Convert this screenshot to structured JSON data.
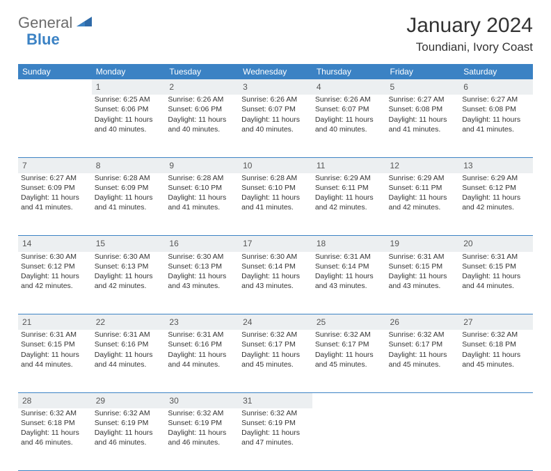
{
  "logo": {
    "text1": "General",
    "text2": "Blue"
  },
  "title": "January 2024",
  "location": "Toundiani, Ivory Coast",
  "colors": {
    "header_bg": "#3b82c4",
    "header_text": "#ffffff",
    "daynum_bg": "#eceff1",
    "page_bg": "#ffffff",
    "text": "#333333",
    "rule": "#3b82c4"
  },
  "fonts": {
    "title_size": 30,
    "location_size": 17,
    "cell_size": 10.5,
    "header_size": 12
  },
  "day_headers": [
    "Sunday",
    "Monday",
    "Tuesday",
    "Wednesday",
    "Thursday",
    "Friday",
    "Saturday"
  ],
  "weeks": [
    {
      "nums": [
        "",
        "1",
        "2",
        "3",
        "4",
        "5",
        "6"
      ],
      "cells": [
        null,
        {
          "sunrise": "Sunrise: 6:25 AM",
          "sunset": "Sunset: 6:06 PM",
          "day1": "Daylight: 11 hours",
          "day2": "and 40 minutes."
        },
        {
          "sunrise": "Sunrise: 6:26 AM",
          "sunset": "Sunset: 6:06 PM",
          "day1": "Daylight: 11 hours",
          "day2": "and 40 minutes."
        },
        {
          "sunrise": "Sunrise: 6:26 AM",
          "sunset": "Sunset: 6:07 PM",
          "day1": "Daylight: 11 hours",
          "day2": "and 40 minutes."
        },
        {
          "sunrise": "Sunrise: 6:26 AM",
          "sunset": "Sunset: 6:07 PM",
          "day1": "Daylight: 11 hours",
          "day2": "and 40 minutes."
        },
        {
          "sunrise": "Sunrise: 6:27 AM",
          "sunset": "Sunset: 6:08 PM",
          "day1": "Daylight: 11 hours",
          "day2": "and 41 minutes."
        },
        {
          "sunrise": "Sunrise: 6:27 AM",
          "sunset": "Sunset: 6:08 PM",
          "day1": "Daylight: 11 hours",
          "day2": "and 41 minutes."
        }
      ]
    },
    {
      "nums": [
        "7",
        "8",
        "9",
        "10",
        "11",
        "12",
        "13"
      ],
      "cells": [
        {
          "sunrise": "Sunrise: 6:27 AM",
          "sunset": "Sunset: 6:09 PM",
          "day1": "Daylight: 11 hours",
          "day2": "and 41 minutes."
        },
        {
          "sunrise": "Sunrise: 6:28 AM",
          "sunset": "Sunset: 6:09 PM",
          "day1": "Daylight: 11 hours",
          "day2": "and 41 minutes."
        },
        {
          "sunrise": "Sunrise: 6:28 AM",
          "sunset": "Sunset: 6:10 PM",
          "day1": "Daylight: 11 hours",
          "day2": "and 41 minutes."
        },
        {
          "sunrise": "Sunrise: 6:28 AM",
          "sunset": "Sunset: 6:10 PM",
          "day1": "Daylight: 11 hours",
          "day2": "and 41 minutes."
        },
        {
          "sunrise": "Sunrise: 6:29 AM",
          "sunset": "Sunset: 6:11 PM",
          "day1": "Daylight: 11 hours",
          "day2": "and 42 minutes."
        },
        {
          "sunrise": "Sunrise: 6:29 AM",
          "sunset": "Sunset: 6:11 PM",
          "day1": "Daylight: 11 hours",
          "day2": "and 42 minutes."
        },
        {
          "sunrise": "Sunrise: 6:29 AM",
          "sunset": "Sunset: 6:12 PM",
          "day1": "Daylight: 11 hours",
          "day2": "and 42 minutes."
        }
      ]
    },
    {
      "nums": [
        "14",
        "15",
        "16",
        "17",
        "18",
        "19",
        "20"
      ],
      "cells": [
        {
          "sunrise": "Sunrise: 6:30 AM",
          "sunset": "Sunset: 6:12 PM",
          "day1": "Daylight: 11 hours",
          "day2": "and 42 minutes."
        },
        {
          "sunrise": "Sunrise: 6:30 AM",
          "sunset": "Sunset: 6:13 PM",
          "day1": "Daylight: 11 hours",
          "day2": "and 42 minutes."
        },
        {
          "sunrise": "Sunrise: 6:30 AM",
          "sunset": "Sunset: 6:13 PM",
          "day1": "Daylight: 11 hours",
          "day2": "and 43 minutes."
        },
        {
          "sunrise": "Sunrise: 6:30 AM",
          "sunset": "Sunset: 6:14 PM",
          "day1": "Daylight: 11 hours",
          "day2": "and 43 minutes."
        },
        {
          "sunrise": "Sunrise: 6:31 AM",
          "sunset": "Sunset: 6:14 PM",
          "day1": "Daylight: 11 hours",
          "day2": "and 43 minutes."
        },
        {
          "sunrise": "Sunrise: 6:31 AM",
          "sunset": "Sunset: 6:15 PM",
          "day1": "Daylight: 11 hours",
          "day2": "and 43 minutes."
        },
        {
          "sunrise": "Sunrise: 6:31 AM",
          "sunset": "Sunset: 6:15 PM",
          "day1": "Daylight: 11 hours",
          "day2": "and 44 minutes."
        }
      ]
    },
    {
      "nums": [
        "21",
        "22",
        "23",
        "24",
        "25",
        "26",
        "27"
      ],
      "cells": [
        {
          "sunrise": "Sunrise: 6:31 AM",
          "sunset": "Sunset: 6:15 PM",
          "day1": "Daylight: 11 hours",
          "day2": "and 44 minutes."
        },
        {
          "sunrise": "Sunrise: 6:31 AM",
          "sunset": "Sunset: 6:16 PM",
          "day1": "Daylight: 11 hours",
          "day2": "and 44 minutes."
        },
        {
          "sunrise": "Sunrise: 6:31 AM",
          "sunset": "Sunset: 6:16 PM",
          "day1": "Daylight: 11 hours",
          "day2": "and 44 minutes."
        },
        {
          "sunrise": "Sunrise: 6:32 AM",
          "sunset": "Sunset: 6:17 PM",
          "day1": "Daylight: 11 hours",
          "day2": "and 45 minutes."
        },
        {
          "sunrise": "Sunrise: 6:32 AM",
          "sunset": "Sunset: 6:17 PM",
          "day1": "Daylight: 11 hours",
          "day2": "and 45 minutes."
        },
        {
          "sunrise": "Sunrise: 6:32 AM",
          "sunset": "Sunset: 6:17 PM",
          "day1": "Daylight: 11 hours",
          "day2": "and 45 minutes."
        },
        {
          "sunrise": "Sunrise: 6:32 AM",
          "sunset": "Sunset: 6:18 PM",
          "day1": "Daylight: 11 hours",
          "day2": "and 45 minutes."
        }
      ]
    },
    {
      "nums": [
        "28",
        "29",
        "30",
        "31",
        "",
        "",
        ""
      ],
      "cells": [
        {
          "sunrise": "Sunrise: 6:32 AM",
          "sunset": "Sunset: 6:18 PM",
          "day1": "Daylight: 11 hours",
          "day2": "and 46 minutes."
        },
        {
          "sunrise": "Sunrise: 6:32 AM",
          "sunset": "Sunset: 6:19 PM",
          "day1": "Daylight: 11 hours",
          "day2": "and 46 minutes."
        },
        {
          "sunrise": "Sunrise: 6:32 AM",
          "sunset": "Sunset: 6:19 PM",
          "day1": "Daylight: 11 hours",
          "day2": "and 46 minutes."
        },
        {
          "sunrise": "Sunrise: 6:32 AM",
          "sunset": "Sunset: 6:19 PM",
          "day1": "Daylight: 11 hours",
          "day2": "and 47 minutes."
        },
        null,
        null,
        null
      ]
    }
  ]
}
